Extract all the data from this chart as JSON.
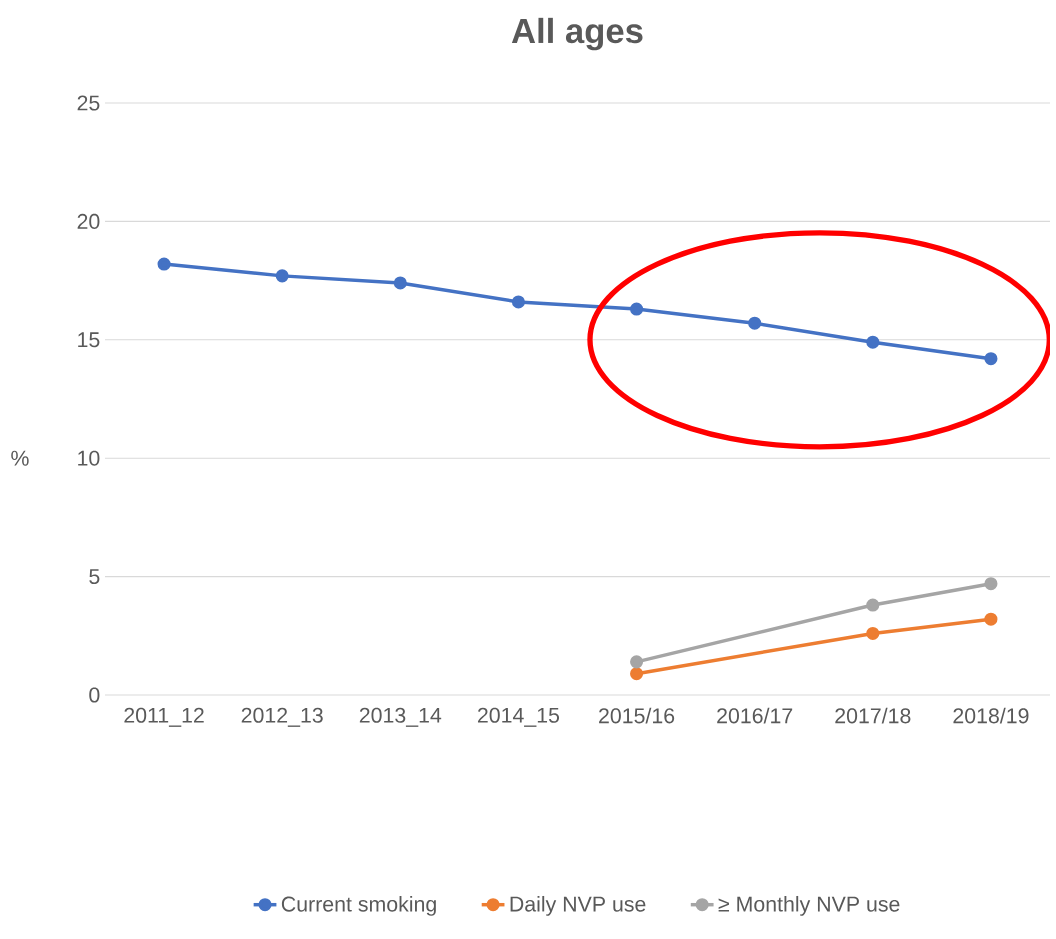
{
  "chart_data": {
    "type": "line",
    "title": "All ages",
    "ylabel": "%",
    "categories": [
      "2011_12",
      "2012_13",
      "2013_14",
      "2014_15",
      "2015/16",
      "2016/17",
      "2017/18",
      "2018/19"
    ],
    "series": [
      {
        "name": "Current smoking",
        "color": "#4472c4",
        "values": [
          18.2,
          17.7,
          17.4,
          16.6,
          16.3,
          15.7,
          14.9,
          14.2
        ]
      },
      {
        "name": "Daily NVP use",
        "color": "#ed7d31",
        "values": [
          null,
          null,
          null,
          null,
          0.9,
          null,
          2.6,
          3.2
        ]
      },
      {
        "name": "≥ Monthly NVP use",
        "color": "#a5a5a5",
        "values": [
          null,
          null,
          null,
          null,
          1.4,
          null,
          3.8,
          4.7
        ]
      }
    ],
    "ylim": [
      0,
      25
    ],
    "yticks": [
      0,
      5,
      10,
      15,
      20,
      25
    ],
    "grid": "y",
    "legend": "bottom",
    "marker": "circle",
    "line_style": "solid"
  }
}
